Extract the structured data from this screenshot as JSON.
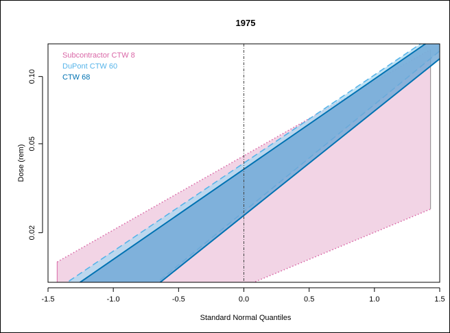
{
  "chart_data": {
    "type": "line",
    "title": "1975",
    "xlabel": "Standard Normal Quantiles",
    "ylabel": "Dose (rem)",
    "xlim": [
      -1.5,
      1.5
    ],
    "ylim": [
      0.012,
      0.14
    ],
    "y_scale": "log",
    "x_ticks": [
      -1.5,
      -1.0,
      -0.5,
      0.0,
      0.5,
      1.0,
      1.5
    ],
    "x_tick_labels": [
      "-1.5",
      "-1.0",
      "-0.5",
      "0.0",
      "0.5",
      "1.0",
      "1.5"
    ],
    "y_ticks": [
      0.02,
      0.05,
      0.1
    ],
    "y_tick_labels": [
      "0.02",
      "0.05",
      "0.10"
    ],
    "reference_line_x": 0.0,
    "grid": false,
    "legend_position": "top-left",
    "series": [
      {
        "name": "Subcontractor CTW 8",
        "color": "#d966a6",
        "fill": "#f0cde0",
        "line_style": "dotted",
        "x_range": [
          -1.43,
          1.43
        ],
        "upper": [
          [
            -1.43,
            0.0148
          ],
          [
            1.43,
            0.132
          ]
        ],
        "lower": [
          [
            0.0,
            0.0115
          ],
          [
            1.43,
            0.0255
          ]
        ]
      },
      {
        "name": "DuPont CTW 60",
        "color": "#56b4e9",
        "fill": "#a9d8f0",
        "line_style": "dashed",
        "x_range": [
          -1.4,
          1.5
        ],
        "upper": [
          [
            -1.4,
            0.0115
          ],
          [
            1.5,
            0.16
          ]
        ],
        "lower": [
          [
            -0.7,
            0.0115
          ],
          [
            1.5,
            0.13
          ]
        ]
      },
      {
        "name": "CTW 68",
        "color": "#0072b2",
        "fill": "#6fa8d6",
        "line_style": "solid",
        "x_range": [
          -1.3,
          1.5
        ],
        "upper": [
          [
            -1.3,
            0.0115
          ],
          [
            1.5,
            0.155
          ]
        ],
        "lower": [
          [
            -0.68,
            0.0115
          ],
          [
            1.5,
            0.12
          ]
        ]
      }
    ]
  }
}
